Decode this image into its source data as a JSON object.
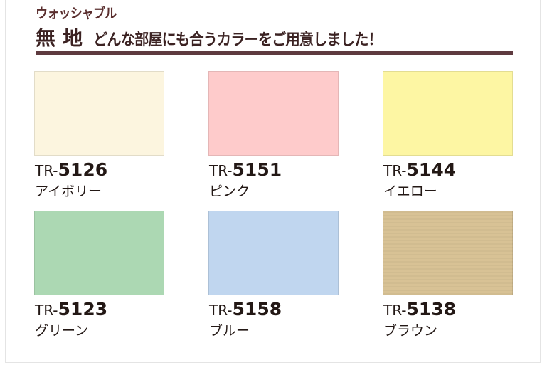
{
  "header": {
    "subtitle": "ウォッシャブル",
    "title": "無地",
    "tagline": "どんな部屋にも合うカラーをご用意しました！",
    "bar_color": "#5e3a3f"
  },
  "swatches": [
    {
      "prefix": "TR-",
      "number": "5126",
      "name": "アイボリー",
      "color": "#fcf5df"
    },
    {
      "prefix": "TR-",
      "number": "5151",
      "name": "ピンク",
      "color": "#fecbcb"
    },
    {
      "prefix": "TR-",
      "number": "5144",
      "name": "イエロー",
      "color": "#fdf6a3"
    },
    {
      "prefix": "TR-",
      "number": "5123",
      "name": "グリーン",
      "color": "#acd8b3"
    },
    {
      "prefix": "TR-",
      "number": "5158",
      "name": "ブルー",
      "color": "#c0d6ef"
    },
    {
      "prefix": "TR-",
      "number": "5138",
      "name": "ブラウン",
      "color": "#d8c295"
    }
  ]
}
